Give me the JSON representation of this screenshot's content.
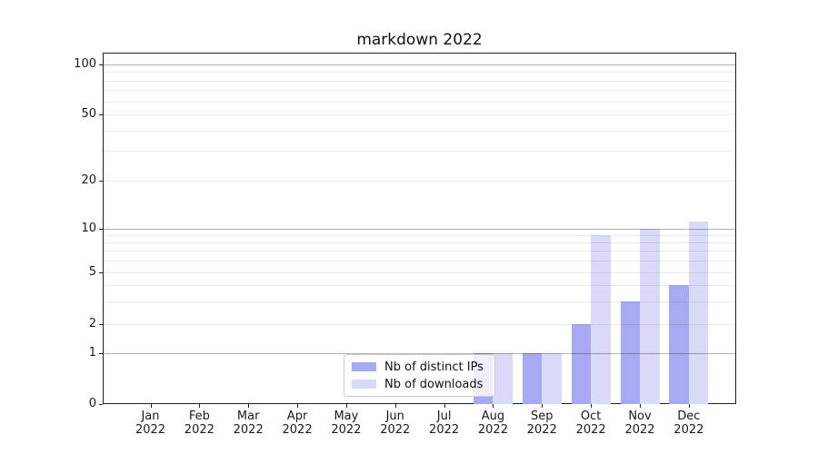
{
  "chart_data": {
    "type": "bar",
    "title": "markdown 2022",
    "categories": [
      "Jan 2022",
      "Feb 2022",
      "Mar 2022",
      "Apr 2022",
      "May 2022",
      "Jun 2022",
      "Jul 2022",
      "Aug 2022",
      "Sep 2022",
      "Oct 2022",
      "Nov 2022",
      "Dec 2022"
    ],
    "series": [
      {
        "name": "Nb of distinct IPs",
        "color": "#a8a9f3",
        "values": [
          0,
          0,
          0,
          0,
          0,
          0,
          0,
          1,
          1,
          2,
          3,
          4
        ]
      },
      {
        "name": "Nb of downloads",
        "color": "#d9daf7",
        "values": [
          0,
          0,
          0,
          0,
          0,
          0,
          0,
          1,
          1,
          9,
          10,
          11
        ]
      }
    ],
    "xlabel": "",
    "ylabel": "",
    "y_axis": {
      "scale": "log-like with linear 0-1 segment",
      "ticks": [
        0,
        1,
        2,
        5,
        10,
        20,
        50,
        100
      ],
      "minor_gridlines": [
        2,
        3,
        4,
        5,
        6,
        7,
        8,
        9,
        20,
        30,
        40,
        50,
        60,
        70,
        80,
        90
      ],
      "major_gridlines": [
        1,
        10,
        100
      ],
      "ylim": [
        0,
        118
      ]
    },
    "legend": {
      "position": "lower center",
      "entries": [
        "Nb of distinct IPs",
        "Nb of downloads"
      ]
    },
    "grid": true,
    "background": "#ffffff"
  }
}
